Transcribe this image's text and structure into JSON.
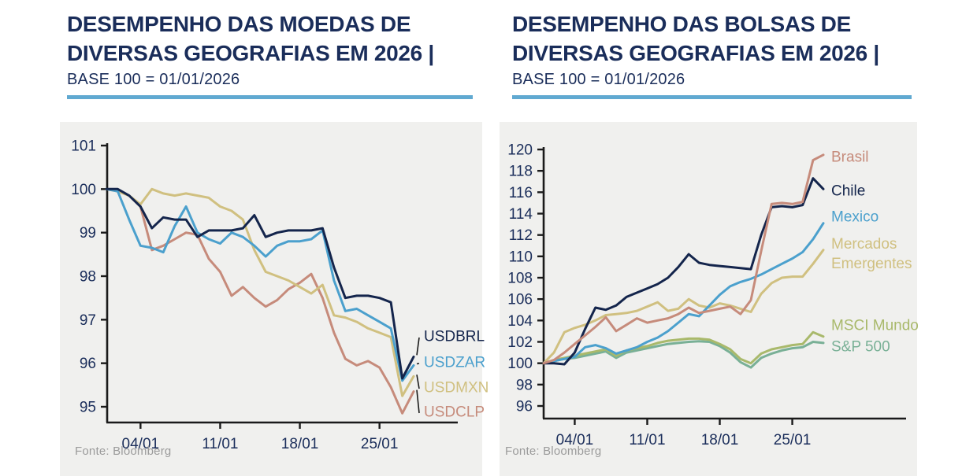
{
  "colors": {
    "title": "#1a2d5a",
    "accent_bar": "#60a9d1",
    "panel": "#f0f0ee",
    "axis": "#1a1a1a",
    "source_text": "#9b9b9b",
    "navy": "#14254c",
    "light_blue": "#4ba0cd",
    "khaki": "#d0c080",
    "salmon": "#c68b7b",
    "olive": "#a9b96b",
    "teal": "#79b096"
  },
  "charts": [
    {
      "title_line1": "DESEMPENHO DAS MOEDAS DE",
      "title_line2": "DIVERSAS GEOGRAFIAS EM 2026 |",
      "subtitle": "BASE 100 = 01/01/2026",
      "source": "Fonte: Bloomberg",
      "chart_data": {
        "type": "line",
        "title": "Desempenho das moedas de diversas geografias em 2026, base 100 = 01/01/2026",
        "grid": false,
        "legend_position": "right-end-labels",
        "ylim": [
          95,
          101
        ],
        "y_ticks": [
          95,
          96,
          97,
          98,
          99,
          100,
          101
        ],
        "x": [
          "01/01",
          "02/01",
          "03/01",
          "04/01",
          "05/01",
          "06/01",
          "07/01",
          "08/01",
          "09/01",
          "10/01",
          "11/01",
          "12/01",
          "13/01",
          "14/01",
          "15/01",
          "16/01",
          "17/01",
          "18/01",
          "19/01",
          "20/01",
          "21/01",
          "22/01",
          "23/01",
          "24/01",
          "25/01",
          "26/01",
          "27/01",
          "28/01"
        ],
        "x_tick_labels": [
          "04/01",
          "11/01",
          "18/01",
          "25/01"
        ],
        "series": [
          {
            "name": "USDBRL",
            "color": "#14254c",
            "values": [
              100,
              100,
              99.85,
              99.6,
              99.1,
              99.35,
              99.3,
              99.3,
              98.9,
              99.05,
              99.05,
              99.05,
              99.1,
              99.4,
              98.9,
              99.0,
              99.05,
              99.05,
              99.05,
              99.1,
              98.2,
              97.5,
              97.55,
              97.55,
              97.5,
              97.4,
              95.65,
              96.15
            ]
          },
          {
            "name": "USDZAR",
            "color": "#4ba0cd",
            "values": [
              100,
              99.95,
              99.3,
              98.7,
              98.65,
              98.55,
              99.15,
              99.6,
              99.0,
              98.85,
              98.75,
              99.0,
              98.9,
              98.7,
              98.45,
              98.7,
              98.8,
              98.8,
              98.85,
              99.05,
              97.9,
              97.2,
              97.25,
              97.1,
              96.95,
              96.8,
              95.6,
              95.95
            ]
          },
          {
            "name": "USDMXN",
            "color": "#d0c080",
            "values": [
              100,
              99.95,
              99.85,
              99.65,
              100.0,
              99.9,
              99.85,
              99.9,
              99.85,
              99.8,
              99.6,
              99.5,
              99.3,
              98.6,
              98.1,
              98.0,
              97.9,
              97.75,
              97.6,
              97.8,
              97.1,
              97.05,
              96.95,
              96.8,
              96.7,
              96.6,
              95.25,
              95.7
            ]
          },
          {
            "name": "USDCLP",
            "color": "#c68b7b",
            "values": [
              100,
              99.95,
              99.85,
              99.6,
              98.6,
              98.7,
              98.85,
              99.0,
              98.95,
              98.4,
              98.1,
              97.55,
              97.75,
              97.5,
              97.3,
              97.45,
              97.7,
              97.85,
              98.05,
              97.5,
              96.7,
              96.1,
              95.95,
              96.05,
              95.9,
              95.45,
              94.85,
              95.35
            ]
          }
        ]
      }
    },
    {
      "title_line1": "DESEMPENHO DAS BOLSAS DE",
      "title_line2": "DIVERSAS GEOGRAFIAS EM 2026 |",
      "subtitle": "BASE 100 = 01/01/2026",
      "source": "Fonte: Bloomberg",
      "chart_data": {
        "type": "line",
        "title": "Desempenho das bolsas de diversas geografias em 2026, base 100 = 01/01/2026",
        "grid": false,
        "legend_position": "right-end-labels",
        "ylim": [
          96,
          120
        ],
        "y_ticks": [
          96,
          98,
          100,
          102,
          104,
          106,
          108,
          110,
          112,
          114,
          116,
          118,
          120
        ],
        "x": [
          "01/01",
          "02/01",
          "03/01",
          "04/01",
          "05/01",
          "06/01",
          "07/01",
          "08/01",
          "09/01",
          "10/01",
          "11/01",
          "12/01",
          "13/01",
          "14/01",
          "15/01",
          "16/01",
          "17/01",
          "18/01",
          "19/01",
          "20/01",
          "21/01",
          "22/01",
          "23/01",
          "24/01",
          "25/01",
          "26/01",
          "27/01",
          "28/01"
        ],
        "x_tick_labels": [
          "04/01",
          "11/01",
          "18/01",
          "25/01"
        ],
        "series": [
          {
            "name": "Brasil",
            "color": "#c68b7b",
            "values": [
              100,
              100.3,
              101.0,
              101.8,
              102.6,
              103.4,
              104.3,
              103.0,
              103.6,
              104.2,
              103.8,
              104.0,
              104.2,
              104.6,
              105.2,
              104.7,
              104.9,
              105.1,
              105.3,
              104.6,
              105.9,
              110.5,
              114.9,
              115.0,
              114.9,
              115.1,
              119.0,
              119.5
            ]
          },
          {
            "name": "Chile",
            "color": "#14254c",
            "values": [
              100,
              100,
              99.9,
              101.0,
              103.2,
              105.2,
              105.0,
              105.4,
              106.2,
              106.6,
              107.0,
              107.4,
              108.0,
              109.0,
              110.2,
              109.4,
              109.2,
              109.1,
              109.0,
              108.9,
              108.8,
              112.0,
              114.6,
              114.7,
              114.6,
              114.8,
              117.3,
              116.3
            ]
          },
          {
            "name": "Mexico",
            "color": "#4ba0cd",
            "values": [
              100,
              100.2,
              100.4,
              100.6,
              101.5,
              101.7,
              101.4,
              100.9,
              101.2,
              101.5,
              102.0,
              102.4,
              103.0,
              103.8,
              104.6,
              104.4,
              105.4,
              106.4,
              107.2,
              107.6,
              107.9,
              108.3,
              108.8,
              109.3,
              109.8,
              110.4,
              111.6,
              113.1
            ]
          },
          {
            "name": "Mercados Emergentes",
            "label_lines": [
              "Mercados",
              "Emergentes"
            ],
            "color": "#d0c080",
            "values": [
              100,
              101.0,
              102.9,
              103.3,
              103.6,
              104.0,
              104.5,
              104.6,
              104.7,
              104.9,
              105.3,
              105.7,
              104.9,
              105.1,
              106.0,
              105.4,
              105.2,
              105.6,
              105.4,
              105.1,
              104.8,
              106.5,
              107.5,
              108.0,
              108.1,
              108.1,
              109.3,
              110.6
            ]
          },
          {
            "name": "MSCI Mundo",
            "color": "#a9b96b",
            "values": [
              100,
              100.3,
              100.5,
              100.7,
              100.9,
              101.1,
              101.3,
              100.7,
              101.2,
              101.4,
              101.6,
              101.9,
              102.1,
              102.2,
              102.3,
              102.3,
              102.2,
              101.8,
              101.3,
              100.4,
              100.0,
              100.9,
              101.3,
              101.5,
              101.7,
              101.8,
              102.9,
              102.5
            ]
          },
          {
            "name": "S&P 500",
            "color": "#79b096",
            "values": [
              100,
              100.2,
              100.4,
              100.5,
              100.7,
              100.9,
              101.1,
              100.5,
              101.0,
              101.2,
              101.4,
              101.6,
              101.8,
              101.9,
              102.0,
              102.05,
              102.0,
              101.6,
              101.0,
              100.1,
              99.6,
              100.5,
              100.9,
              101.2,
              101.4,
              101.5,
              102.0,
              101.9
            ]
          }
        ]
      }
    }
  ]
}
